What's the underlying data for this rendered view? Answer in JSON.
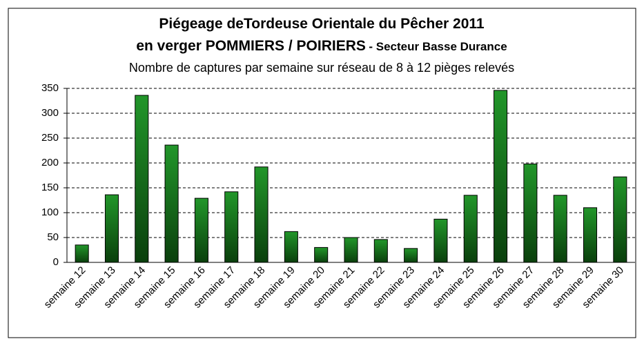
{
  "chart_data": {
    "type": "bar",
    "title": "Piégeage deTordeuse Orientale du Pêcher 2011",
    "title_line2": "en verger POMMIERS / POIRIERS",
    "title_line2_suffix": "- Secteur Basse Durance",
    "subtitle": "Nombre de captures par semaine sur réseau de 8 à 12 pièges relevés",
    "categories": [
      "semaine 12",
      "semaine 13",
      "semaine 14",
      "semaine 15",
      "semaine 16",
      "semaine 17",
      "semaine 18",
      "semaine 19",
      "semaine 20",
      "semaine 21",
      "semaine 22",
      "semaine 23",
      "semaine 24",
      "semaine 25",
      "semaine 26",
      "semaine 27",
      "semaine 28",
      "semaine 29",
      "semaine 30"
    ],
    "values": [
      35,
      136,
      336,
      236,
      129,
      142,
      192,
      62,
      30,
      50,
      46,
      28,
      87,
      135,
      346,
      198,
      135,
      110,
      172
    ],
    "color": "#22962a",
    "ylim": [
      0,
      350
    ],
    "yticks": [
      0,
      50,
      100,
      150,
      200,
      250,
      300,
      350
    ],
    "grid": true
  }
}
